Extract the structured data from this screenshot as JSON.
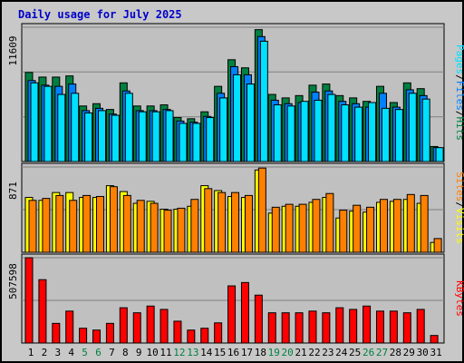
{
  "title": "Daily usage for July 2025",
  "colors": {
    "hits": "#008040",
    "files": "#0080ff",
    "pages": "#00e0ff",
    "visits": "#ffff00",
    "sites": "#ff8000",
    "kbytes": "#ff0000",
    "weekday_label": "#000000",
    "weekend_label": "#008040"
  },
  "chart_data": [
    {
      "type": "bar",
      "name": "hits-files-pages",
      "ymax_label": "11609",
      "ylim": [
        0,
        11609
      ],
      "legend": [
        "Pages",
        "/",
        "Files",
        "/",
        "Hits"
      ],
      "categories": [
        "1",
        "2",
        "3",
        "4",
        "5",
        "6",
        "7",
        "8",
        "9",
        "10",
        "11",
        "12",
        "13",
        "14",
        "15",
        "16",
        "17",
        "18",
        "19",
        "20",
        "21",
        "22",
        "23",
        "24",
        "25",
        "26",
        "27",
        "28",
        "29",
        "30",
        "31"
      ],
      "weekend_days": [
        "5",
        "6",
        "12",
        "13",
        "19",
        "20",
        "26",
        "27"
      ],
      "series": [
        {
          "name": "Hits",
          "values": [
            7700,
            7300,
            7300,
            7400,
            4800,
            5000,
            4500,
            6800,
            4800,
            4800,
            4900,
            3800,
            3700,
            4300,
            6500,
            8800,
            8100,
            11400,
            5800,
            5500,
            5700,
            6600,
            6700,
            5700,
            5500,
            5200,
            6500,
            5100,
            6800,
            6300,
            1300
          ]
        },
        {
          "name": "Files",
          "values": [
            7000,
            6600,
            6500,
            6700,
            4400,
            4600,
            4100,
            6100,
            4400,
            4400,
            4500,
            3500,
            3400,
            3900,
            5900,
            8200,
            7500,
            10800,
            5300,
            5000,
            5100,
            6000,
            6100,
            5200,
            5000,
            4700,
            5900,
            4700,
            6200,
            5700,
            1200
          ]
        },
        {
          "name": "Pages",
          "values": [
            6800,
            6500,
            5800,
            5900,
            4200,
            4400,
            4000,
            5900,
            4300,
            4300,
            4400,
            3300,
            3300,
            3800,
            5500,
            7500,
            6700,
            10400,
            4900,
            4800,
            5200,
            5300,
            5800,
            4900,
            4700,
            5100,
            4600,
            4500,
            5900,
            5400,
            1200
          ]
        }
      ]
    },
    {
      "type": "bar",
      "name": "visits-sites",
      "ymax_label": "871",
      "ylim": [
        0,
        871
      ],
      "legend": [
        "Sites",
        "/",
        "Visits"
      ],
      "categories": [
        "1",
        "2",
        "3",
        "4",
        "5",
        "6",
        "7",
        "8",
        "9",
        "10",
        "11",
        "12",
        "13",
        "14",
        "15",
        "16",
        "17",
        "18",
        "19",
        "20",
        "21",
        "22",
        "23",
        "24",
        "25",
        "26",
        "27",
        "28",
        "29",
        "30",
        "31"
      ],
      "series": [
        {
          "name": "Visits",
          "values": [
            560,
            530,
            610,
            610,
            560,
            560,
            680,
            620,
            500,
            520,
            440,
            440,
            470,
            680,
            630,
            570,
            560,
            840,
            400,
            470,
            470,
            510,
            560,
            350,
            420,
            410,
            510,
            520,
            540,
            500,
            100
          ]
        },
        {
          "name": "Sites",
          "values": [
            530,
            550,
            580,
            530,
            580,
            570,
            670,
            580,
            530,
            500,
            430,
            450,
            540,
            650,
            610,
            610,
            580,
            860,
            460,
            490,
            490,
            540,
            600,
            430,
            480,
            460,
            540,
            540,
            590,
            580,
            140
          ]
        }
      ]
    },
    {
      "type": "bar",
      "name": "kbytes",
      "ymax_label": "507598",
      "ylim": [
        0,
        507598
      ],
      "legend": [
        "KBytes"
      ],
      "categories": [
        "1",
        "2",
        "3",
        "4",
        "5",
        "6",
        "7",
        "8",
        "9",
        "10",
        "11",
        "12",
        "13",
        "14",
        "15",
        "16",
        "17",
        "18",
        "19",
        "20",
        "21",
        "22",
        "23",
        "24",
        "25",
        "26",
        "27",
        "28",
        "29",
        "30",
        "31"
      ],
      "series": [
        {
          "name": "KBytes",
          "values": [
            507598,
            377000,
            117000,
            190000,
            88000,
            77000,
            117000,
            210000,
            180000,
            220000,
            200000,
            130000,
            77000,
            88000,
            120000,
            340000,
            360000,
            285000,
            180000,
            180000,
            180000,
            190000,
            180000,
            210000,
            200000,
            220000,
            190000,
            190000,
            180000,
            200000,
            45000
          ]
        }
      ]
    }
  ]
}
